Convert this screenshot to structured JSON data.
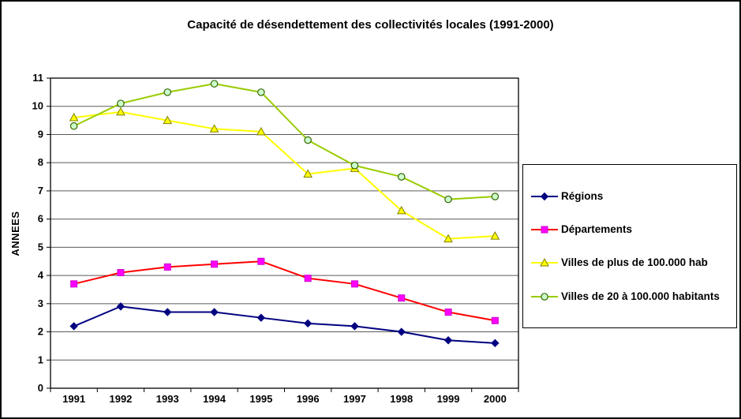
{
  "chart_data": {
    "type": "line",
    "title": "Capacité de désendettement des collectivités locales (1991-2000)",
    "xlabel": "",
    "ylabel": "ANNEES",
    "ylim": [
      0,
      11
    ],
    "y_tick_step": 1,
    "grid": true,
    "legend_position": "right",
    "categories": [
      "1991",
      "1992",
      "1993",
      "1994",
      "1995",
      "1996",
      "1997",
      "1998",
      "1999",
      "2000"
    ],
    "series": [
      {
        "name": "Régions",
        "marker": "diamond",
        "line_color": "#000080",
        "marker_fill": "#000080",
        "marker_stroke": "#000080",
        "values": [
          2.2,
          2.9,
          2.7,
          2.7,
          2.5,
          2.3,
          2.2,
          2.0,
          1.7,
          1.6
        ]
      },
      {
        "name": "Départements",
        "marker": "square",
        "line_color": "#FF0000",
        "marker_fill": "#FF00FF",
        "marker_stroke": "#CC00CC",
        "values": [
          3.7,
          4.1,
          4.3,
          4.4,
          4.5,
          3.9,
          3.7,
          3.2,
          2.7,
          2.4
        ]
      },
      {
        "name": "Villes de plus de 100.000 hab",
        "marker": "triangle",
        "line_color": "#FFFF00",
        "marker_fill": "#FFFF00",
        "marker_stroke": "#808000",
        "values": [
          9.6,
          9.8,
          9.5,
          9.2,
          9.1,
          7.6,
          7.8,
          6.3,
          5.3,
          5.4
        ]
      },
      {
        "name": "Villes de 20 à 100.000 habitants",
        "marker": "circle",
        "line_color": "#99CC00",
        "marker_fill": "#CCFFCC",
        "marker_stroke": "#336600",
        "values": [
          9.3,
          10.1,
          10.5,
          10.8,
          10.5,
          8.8,
          7.9,
          7.5,
          6.7,
          6.8
        ]
      }
    ],
    "colors": {
      "gridline": "#5a5a5a",
      "axis": "#000000",
      "background": "#ffffff"
    }
  }
}
